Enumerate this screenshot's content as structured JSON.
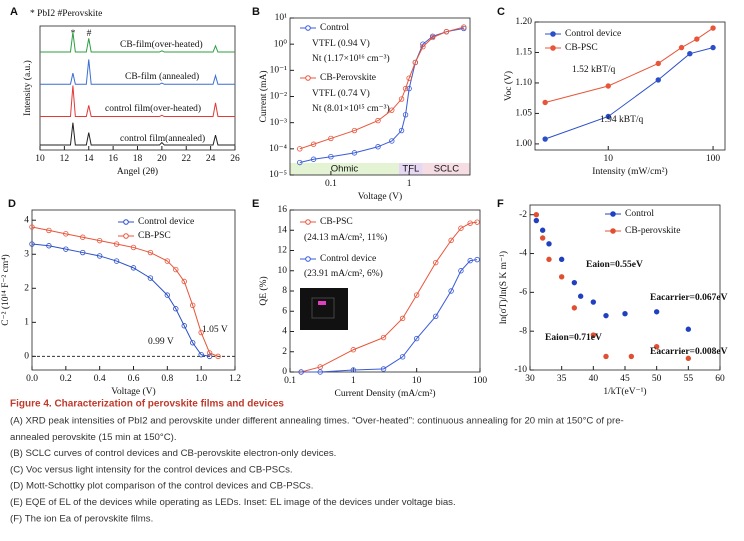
{
  "chart_data": [
    {
      "panel": "A",
      "type": "line",
      "header": "* PbI2 #Perovskite",
      "peak_marks": [
        "*",
        "#"
      ],
      "x_label": "Angel (2θ)",
      "y_label": "Intensity (a.u.)",
      "x": [
        10,
        12.5,
        12.7,
        12.9,
        13.8,
        14.0,
        14.2,
        19.8,
        20.0,
        20.2,
        24.2,
        24.4,
        24.6,
        26
      ],
      "xlim": [
        10,
        26
      ],
      "xticks": [
        10,
        12,
        14,
        16,
        18,
        20,
        22,
        24,
        26
      ],
      "ylim": [
        0,
        100
      ],
      "legend": "inline",
      "series": [
        {
          "name": "CB-film(over-heated)",
          "color": "#2e9e44",
          "values": [
            79,
            79,
            95,
            79,
            79,
            90,
            79,
            79,
            80,
            79,
            79,
            84,
            79,
            79
          ]
        },
        {
          "name": "CB-film (annealed)",
          "color": "#3b6fd0",
          "values": [
            53,
            53,
            62,
            53,
            53,
            73,
            53,
            53,
            54,
            53,
            53,
            60,
            53,
            53
          ]
        },
        {
          "name": "control film(over-heated)",
          "color": "#e03a3a",
          "values": [
            27,
            27,
            52,
            27,
            27,
            36,
            27,
            27,
            28,
            27,
            27,
            38,
            27,
            27
          ]
        },
        {
          "name": "control film(annealed)",
          "color": "#222222",
          "values": [
            4,
            4,
            22,
            4,
            4,
            14,
            4,
            4,
            6,
            4,
            4,
            12,
            4,
            4
          ]
        }
      ]
    },
    {
      "panel": "B",
      "type": "line",
      "x_label": "Voltage (V)",
      "y_label": "Current (mA)",
      "xlog": true,
      "ylog": true,
      "xlim": [
        0.03,
        6
      ],
      "xticks": [
        0.1,
        1
      ],
      "ylim": [
        1e-05,
        10
      ],
      "yticks": [
        {
          "value": 1e-05,
          "label": "10⁻⁵"
        },
        {
          "value": 0.0001,
          "label": "10⁻⁴"
        },
        {
          "value": 0.001,
          "label": "10⁻³"
        },
        {
          "value": 0.01,
          "label": "10⁻²"
        },
        {
          "value": 0.1,
          "label": "10⁻¹"
        },
        {
          "value": 1,
          "label": "10⁰"
        },
        {
          "value": 10,
          "label": "10¹"
        }
      ],
      "regions": [
        "Ohmic",
        "TFL",
        "SCLC"
      ],
      "x": [
        0.04,
        0.06,
        0.1,
        0.2,
        0.4,
        0.6,
        0.8,
        0.9,
        1.0,
        1.2,
        1.5,
        2,
        3,
        5
      ],
      "series": [
        {
          "name": "Control",
          "color": "#3a5bd9",
          "marker": "open",
          "values": [
            3e-05,
            4e-05,
            5e-05,
            7e-05,
            0.00012,
            0.0002,
            0.0005,
            0.002,
            0.02,
            0.2,
            1,
            2,
            3,
            4
          ]
        },
        {
          "name": "CB-Perovskite",
          "color": "#e8553a",
          "marker": "open",
          "values": [
            0.0001,
            0.00015,
            0.00025,
            0.0005,
            0.0012,
            0.003,
            0.008,
            0.02,
            0.05,
            0.2,
            0.8,
            1.8,
            3,
            4.5
          ]
        }
      ],
      "annotations": [
        {
          "text": "VTFL (0.94 V)",
          "color": "#3a5bd9"
        },
        {
          "text": "Nt (1.17×10¹⁶ cm⁻³)",
          "color": "#3a5bd9"
        },
        {
          "text": "VTFL (0.74 V)",
          "color": "#e8553a"
        },
        {
          "text": "Nt (8.01×10¹⁵ cm⁻³)",
          "color": "#e8553a"
        }
      ]
    },
    {
      "panel": "C",
      "type": "line",
      "x_label": "Intensity (mW/cm²)",
      "y_label": "Voc (V)",
      "xlog": true,
      "xlim": [
        2,
        130
      ],
      "xticks": [
        10,
        100
      ],
      "ylim": [
        0.99,
        1.2
      ],
      "yticks": [
        {
          "value": 1,
          "label": "1.00"
        },
        {
          "value": 1.05,
          "label": "1.05"
        },
        {
          "value": 1.1,
          "label": "1.10"
        },
        {
          "value": 1.15,
          "label": "1.15"
        },
        {
          "value": 1.2,
          "label": "1.20"
        }
      ],
      "series": [
        {
          "name": "Control device",
          "color": "#2b4fc8",
          "marker": "filled",
          "x": [
            2.5,
            10,
            30,
            60,
            100
          ],
          "values": [
            1.008,
            1.045,
            1.105,
            1.148,
            1.158
          ]
        },
        {
          "name": "CB-PSC",
          "color": "#e8553a",
          "marker": "filled",
          "x": [
            2.5,
            10,
            30,
            50,
            70,
            100
          ],
          "values": [
            1.068,
            1.095,
            1.132,
            1.158,
            1.172,
            1.19
          ]
        }
      ],
      "annotations": [
        {
          "text": "1.52 kBT/q",
          "color": "#111111"
        },
        {
          "text": "1.94 kBT/q",
          "color": "#111111"
        }
      ]
    },
    {
      "panel": "D",
      "type": "line",
      "x_label": "Voltage (V)",
      "y_label": "C⁻² (10¹⁴ F⁻² cm⁴)",
      "xlim": [
        0,
        1.2
      ],
      "xticks": [
        {
          "value": 0,
          "label": "0.0"
        },
        {
          "value": 0.2,
          "label": "0.2"
        },
        {
          "value": 0.4,
          "label": "0.4"
        },
        {
          "value": 0.6,
          "label": "0.6"
        },
        {
          "value": 0.8,
          "label": "0.8"
        },
        {
          "value": 1,
          "label": "1.0"
        },
        {
          "value": 1.2,
          "label": "1.2"
        }
      ],
      "ylim": [
        -0.4,
        4.3
      ],
      "yticks": [
        0,
        1,
        2,
        3,
        4
      ],
      "zero_line": true,
      "series": [
        {
          "name": "Control device",
          "color": "#2b4fc8",
          "marker": "open",
          "x": [
            0,
            0.1,
            0.2,
            0.3,
            0.4,
            0.5,
            0.6,
            0.7,
            0.8,
            0.85,
            0.9,
            0.95,
            1.0,
            1.05
          ],
          "values": [
            3.3,
            3.25,
            3.15,
            3.05,
            2.95,
            2.8,
            2.6,
            2.3,
            1.8,
            1.4,
            0.9,
            0.4,
            0.05,
            0
          ]
        },
        {
          "name": "CB-PSC",
          "color": "#e8553a",
          "marker": "open",
          "x": [
            0,
            0.1,
            0.2,
            0.3,
            0.4,
            0.5,
            0.6,
            0.7,
            0.8,
            0.85,
            0.9,
            0.95,
            1.0,
            1.05,
            1.1
          ],
          "values": [
            3.8,
            3.7,
            3.6,
            3.5,
            3.4,
            3.3,
            3.2,
            3.05,
            2.8,
            2.55,
            2.2,
            1.5,
            0.7,
            0.1,
            0
          ]
        }
      ],
      "annotations": [
        {
          "text": "0.99 V",
          "color": "#111111"
        },
        {
          "text": "1.05 V",
          "color": "#111111"
        }
      ]
    },
    {
      "panel": "E",
      "type": "line",
      "x_label": "Current Density (mA/cm²)",
      "y_label": "QE (%)",
      "xlog": true,
      "xlim": [
        0.1,
        100
      ],
      "xticks": [
        0.1,
        1,
        10,
        100
      ],
      "ylim": [
        0,
        16
      ],
      "yticks": [
        0,
        2,
        4,
        6,
        8,
        10,
        12,
        14,
        16
      ],
      "x": [
        0.15,
        0.3,
        1,
        3,
        6,
        10,
        20,
        35,
        50,
        70,
        90
      ],
      "series": [
        {
          "name": "CB-PSC",
          "color": "#e8553a",
          "marker": "open",
          "values": [
            0,
            0.5,
            2.2,
            3.4,
            5.3,
            7.6,
            10.8,
            13,
            14.2,
            14.7,
            14.8
          ]
        },
        {
          "name": "Control device",
          "color": "#3a5bd9",
          "marker": "open",
          "values": [
            0,
            0,
            0.2,
            0.3,
            1.5,
            3.3,
            5.5,
            8,
            10,
            11,
            11.1
          ]
        }
      ],
      "annotations": [
        {
          "text": "(24.13 mA/cm², 11%)",
          "color": "#e8553a"
        },
        {
          "text": "(23.91 mA/cm², 6%)",
          "color": "#3a5bd9"
        }
      ]
    },
    {
      "panel": "F",
      "type": "scatter",
      "x_label": "1/kT(eV⁻¹)",
      "y_label": "ln(σT)/ln(S K m⁻¹)",
      "xlim": [
        30,
        60
      ],
      "xticks": [
        30,
        35,
        40,
        45,
        50,
        55,
        60
      ],
      "ylim": [
        -10,
        -1.5
      ],
      "yticks": [
        -10,
        -8,
        -6,
        -4,
        -2
      ],
      "series": [
        {
          "name": "Control",
          "color": "#2040c0",
          "marker": "filled",
          "x": [
            31,
            32,
            33,
            35,
            37,
            38,
            40,
            42,
            45,
            50,
            55
          ],
          "values": [
            -2.3,
            -2.8,
            -3.5,
            -4.3,
            -5.5,
            -6.2,
            -6.5,
            -7.2,
            -7.1,
            -7.0,
            -7.9
          ]
        },
        {
          "name": "CB-perovskite",
          "color": "#e05030",
          "marker": "filled",
          "x": [
            31,
            32,
            33,
            35,
            37,
            40,
            42,
            46,
            50,
            55
          ],
          "values": [
            -2.0,
            -3.2,
            -4.3,
            -5.2,
            -6.8,
            -8.2,
            -9.3,
            -9.3,
            -8.8,
            -9.4
          ]
        }
      ],
      "annotations": [
        {
          "text": "Eaion=0.55eV",
          "color": "#2040c0"
        },
        {
          "text": "Eacarrier=0.067eV",
          "color": "#2040c0"
        },
        {
          "text": "Eaion=0.71eV",
          "color": "#c0302a"
        },
        {
          "text": "Eacarrier=0.008eV",
          "color": "#c0302a"
        }
      ]
    }
  ],
  "caption": {
    "title": "Figure 4. Characterization of perovskite films and devices",
    "lines": [
      "(A) XRD peak intensities of PbI2 and perovskite under different annealing times. “Over-heated”: continuous annealing for 20 min at 150°C of pre-",
      "annealed perovskite (15 min at 150°C).",
      "(B) SCLC curves of control devices and CB-perovskite electron-only devices.",
      "(C) Voc versus light intensity for the control devices and CB-PSCs.",
      "(D) Mott-Schottky plot comparison of the control devices and CB-PSCs.",
      "(E) EQE of EL of the devices while operating as LEDs. Inset: EL image of the devices under voltage bias.",
      "(F) The ion Ea of perovskite films."
    ]
  }
}
